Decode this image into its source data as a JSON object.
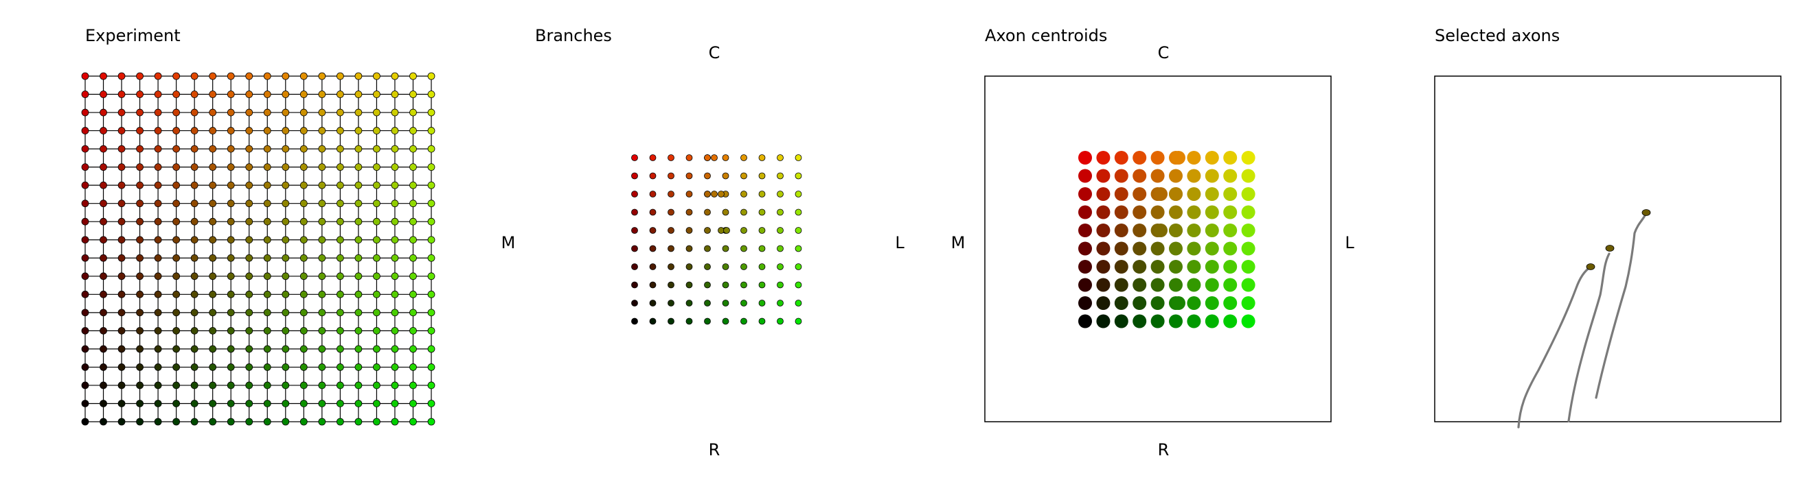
{
  "panels": {
    "experiment": {
      "title": "Experiment"
    },
    "branches": {
      "title": "Branches"
    },
    "centroids": {
      "title": "Axon centroids"
    },
    "selected": {
      "title": "Selected axons"
    }
  },
  "orientation": {
    "top": "C",
    "bottom": "R",
    "left": "M",
    "right": "L"
  },
  "colors": {
    "top_left": "#e00000",
    "top_right": "#e6e600",
    "bottom_left": "#000000",
    "bottom_right": "#00e600",
    "grid_line": "#000000",
    "axon_trace": "#7a7a7a",
    "axon_tip": "#6b5a00"
  },
  "experiment_grid": {
    "columns": 20,
    "rows": 20
  },
  "target_grid": {
    "columns": 10,
    "rows": 10
  },
  "selected_axons": {
    "count": 3
  }
}
